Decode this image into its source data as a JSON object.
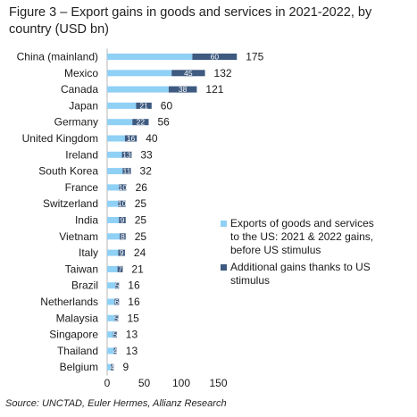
{
  "title": "Figure 3 – Export gains in goods and services in 2021-2022, by country (USD bn)",
  "source": "Source: UNCTAD, Euler Hermes, Allianz Research",
  "chart_data": {
    "type": "bar",
    "orientation": "horizontal",
    "stacked": true,
    "categories": [
      "China (mainland)",
      "Mexico",
      "Canada",
      "Japan",
      "Germany",
      "United Kingdom",
      "Ireland",
      "South Korea",
      "France",
      "Switzerland",
      "India",
      "Vietnam",
      "Italy",
      "Taiwan",
      "Brazil",
      "Netherlands",
      "Malaysia",
      "Singapore",
      "Thailand",
      "Belgium"
    ],
    "series": [
      {
        "name": "Exports of goods and services to the US: 2021 & 2022 gains, before US stimulus",
        "color": "#8fd0f5",
        "values": [
          115,
          87,
          83,
          39,
          34,
          24,
          20,
          21,
          16,
          15,
          16,
          17,
          15,
          14,
          11,
          10,
          10,
          8,
          9,
          5
        ]
      },
      {
        "name": "Additional gains thanks to US stimulus",
        "color": "#3e5a80",
        "values": [
          60,
          45,
          38,
          21,
          22,
          16,
          13,
          11,
          10,
          10,
          9,
          8,
          9,
          7,
          5,
          6,
          5,
          5,
          4,
          4
        ]
      }
    ],
    "totals": [
      175,
      132,
      121,
      60,
      56,
      40,
      33,
      32,
      26,
      25,
      25,
      25,
      24,
      21,
      16,
      16,
      15,
      13,
      13,
      9
    ],
    "xlim": [
      0,
      200
    ],
    "xticks": [
      0,
      50,
      100,
      150
    ],
    "grid": false,
    "legend_position": "right"
  }
}
